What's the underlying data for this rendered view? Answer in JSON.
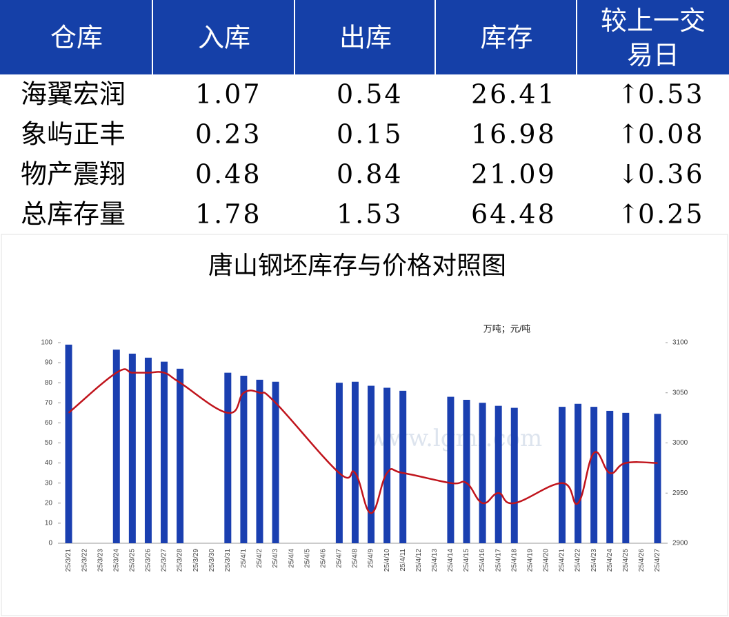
{
  "table": {
    "header": [
      "仓库",
      "入库",
      "出库",
      "库存",
      "较上一交易日"
    ],
    "rows": [
      [
        "海翼宏润",
        "1.07",
        "0.54",
        "26.41",
        "↑",
        "0.53"
      ],
      [
        "象屿正丰",
        "0.23",
        "0.15",
        "16.98",
        "↑",
        "0.08"
      ],
      [
        "物产震翔",
        "0.48",
        "0.84",
        "21.09",
        "↓",
        "0.36"
      ],
      [
        "总库存量",
        "1.78",
        "1.53",
        "64.48",
        "↑",
        "0.25"
      ]
    ]
  },
  "chart_data": {
    "type": "bar-line",
    "title": "唐山钢坯库存与价格对照图",
    "unit_label": "万吨；元/吨",
    "watermark": "www.lgmi.com",
    "categories": [
      "25/3/21",
      "25/3/22",
      "25/3/23",
      "25/3/24",
      "25/3/25",
      "25/3/26",
      "25/3/27",
      "25/3/28",
      "25/3/29",
      "25/3/30",
      "25/3/31",
      "25/4/1",
      "25/4/2",
      "25/4/3",
      "25/4/4",
      "25/4/5",
      "25/4/6",
      "25/4/7",
      "25/4/8",
      "25/4/9",
      "25/4/10",
      "25/4/11",
      "25/4/12",
      "25/4/13",
      "25/4/14",
      "25/4/15",
      "25/4/16",
      "25/4/17",
      "25/4/18",
      "25/4/19",
      "25/4/20",
      "25/4/21",
      "25/4/22",
      "25/4/23",
      "25/4/24",
      "25/4/25",
      "25/4/26",
      "25/4/27"
    ],
    "series": [
      {
        "type": "bar",
        "color": "#1a3fb0",
        "values": [
          99,
          null,
          null,
          96.5,
          94.5,
          92.5,
          90.5,
          87,
          null,
          null,
          85,
          83.5,
          81.5,
          80.5,
          null,
          null,
          null,
          80,
          80.5,
          78.5,
          77.5,
          76,
          null,
          null,
          73,
          71.5,
          70,
          68.5,
          67.5,
          null,
          null,
          68,
          69.5,
          68,
          66,
          65,
          null,
          64.5
        ]
      },
      {
        "type": "line",
        "axis": "y2",
        "color": "#c0141c",
        "values": [
          3030,
          null,
          null,
          3070,
          3070,
          3070,
          3070,
          3060,
          null,
          null,
          3030,
          3050,
          3050,
          3040,
          null,
          null,
          null,
          2970,
          2970,
          2930,
          2970,
          2970,
          null,
          null,
          2960,
          2960,
          2940,
          2950,
          2940,
          null,
          null,
          2960,
          2940,
          2990,
          2970,
          2980,
          null,
          2980
        ]
      }
    ],
    "ylim": [
      0,
      100
    ],
    "yticks": [
      0,
      10,
      20,
      30,
      40,
      50,
      60,
      70,
      80,
      90,
      100
    ],
    "y2lim": [
      2900,
      3100
    ],
    "y2ticks": [
      2900,
      2950,
      3000,
      3050,
      3100
    ]
  }
}
